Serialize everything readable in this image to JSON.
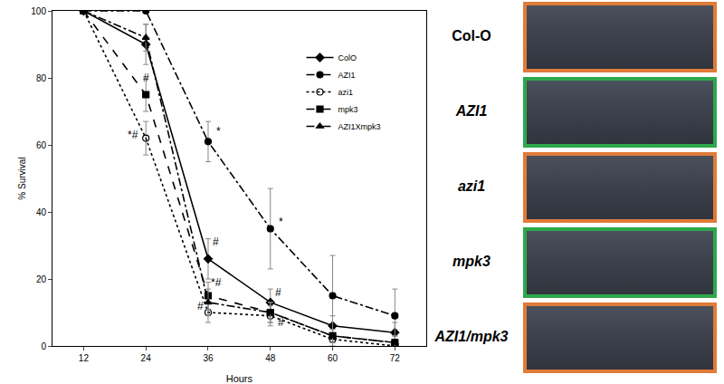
{
  "chart_data": {
    "type": "line",
    "xlabel": "Hours",
    "ylabel": "% Survival",
    "x": [
      12,
      24,
      36,
      48,
      60,
      72
    ],
    "xlim": [
      6,
      78
    ],
    "xticks": [
      12,
      24,
      36,
      48,
      60,
      72
    ],
    "ylim": [
      0,
      100
    ],
    "yticks": [
      0,
      20,
      40,
      60,
      80,
      100
    ],
    "grid": false,
    "legend": "upper right",
    "series": [
      {
        "name": "ColO",
        "color": "#000000",
        "marker": "diamond",
        "line_style": "solid",
        "values": [
          100,
          90,
          26,
          13,
          6,
          4
        ],
        "errors": [
          0,
          6,
          6,
          4,
          3,
          3
        ]
      },
      {
        "name": "AZI1",
        "color": "#000000",
        "marker": "circle",
        "line_style": "dashdot",
        "values": [
          100,
          100,
          61,
          35,
          15,
          9
        ],
        "errors": [
          0,
          0,
          6,
          12,
          12,
          8
        ]
      },
      {
        "name": "azi1",
        "color": "#000000",
        "marker": "circle-open",
        "line_style": "dot",
        "values": [
          100,
          62,
          10,
          9,
          2,
          0
        ],
        "errors": [
          0,
          5,
          3,
          3,
          2,
          2
        ]
      },
      {
        "name": "mpk3",
        "color": "#000000",
        "marker": "square",
        "line_style": "dash",
        "values": [
          100,
          75,
          15,
          10,
          3,
          1
        ],
        "errors": [
          0,
          5,
          4,
          3,
          2,
          2
        ]
      },
      {
        "name": "AZI1Xmpk3",
        "color": "#000000",
        "marker": "triangle-up",
        "line_style": "dashdot",
        "values": [
          100,
          92,
          13,
          10,
          3,
          1
        ],
        "errors": [
          0,
          4,
          4,
          3,
          2,
          2
        ]
      }
    ],
    "annotations": [
      {
        "x": 24,
        "y": 80,
        "text": "#"
      },
      {
        "x": 21.5,
        "y": 63,
        "text": "*#"
      },
      {
        "x": 38,
        "y": 64,
        "text": "*"
      },
      {
        "x": 37.5,
        "y": 31,
        "text": "#"
      },
      {
        "x": 37.5,
        "y": 19,
        "text": "*#"
      },
      {
        "x": 34.5,
        "y": 12,
        "text": "#"
      },
      {
        "x": 50,
        "y": 37,
        "text": "*"
      },
      {
        "x": 49.5,
        "y": 16,
        "text": "#"
      },
      {
        "x": 50,
        "y": 7,
        "text": "#"
      }
    ]
  },
  "image_panels": [
    {
      "label": "Col-O",
      "color": "#e07b39"
    },
    {
      "label": "AZI1",
      "color": "#2ea84a"
    },
    {
      "label": "azi1",
      "color": "#e07b39"
    },
    {
      "label": "mpk3",
      "color": "#2ea84a"
    },
    {
      "label": "AZI1/mpk3",
      "color": "#e07b39"
    }
  ]
}
